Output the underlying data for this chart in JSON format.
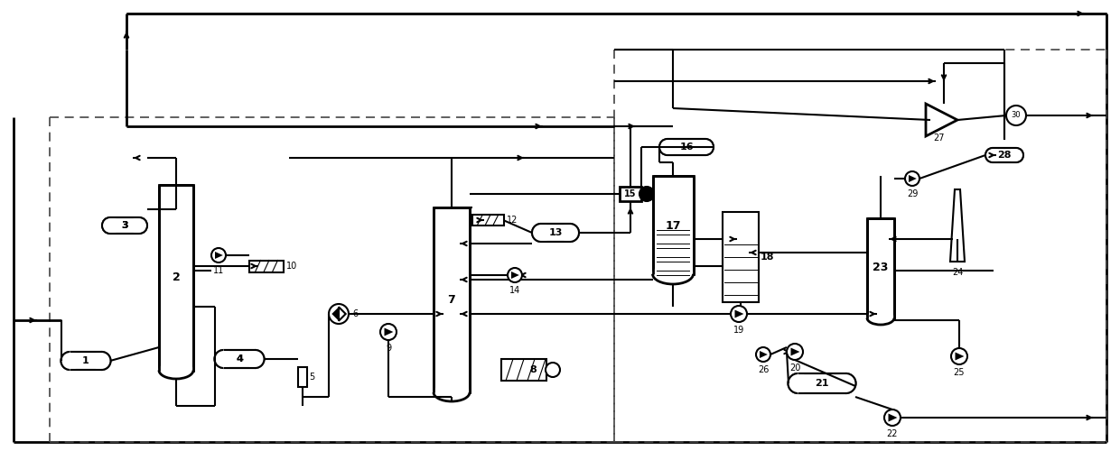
{
  "bg_color": "#ffffff",
  "line_color": "#000000",
  "dashed_color": "#555555",
  "lw": 1.5,
  "arrow_color": "#000000"
}
